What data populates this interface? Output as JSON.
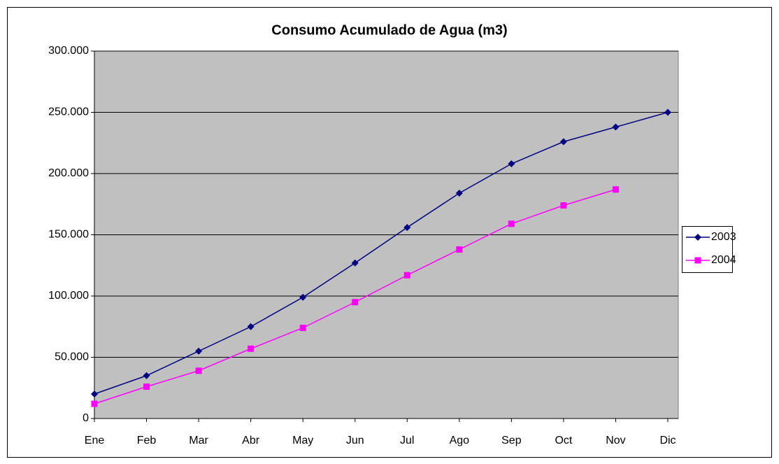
{
  "chart_data": {
    "type": "line",
    "title": "Consumo Acumulado de Agua (m3)",
    "categories": [
      "Ene",
      "Feb",
      "Mar",
      "Abr",
      "May",
      "Jun",
      "Jul",
      "Ago",
      "Sep",
      "Oct",
      "Nov",
      "Dic"
    ],
    "series": [
      {
        "name": "2003",
        "color": "#000080",
        "marker": "diamond",
        "values": [
          20000,
          35000,
          55000,
          75000,
          99000,
          127000,
          156000,
          184000,
          208000,
          226000,
          238000,
          250000
        ]
      },
      {
        "name": "2004",
        "color": "#FF00FF",
        "marker": "square",
        "values": [
          12000,
          26000,
          39000,
          57000,
          74000,
          95000,
          117000,
          138000,
          159000,
          174000,
          187000,
          null
        ]
      }
    ],
    "ylim": [
      0,
      300000
    ],
    "yticks": [
      0,
      {
        "value": 50000,
        "label": "50.000"
      },
      {
        "value": 100000,
        "label": "100.000"
      },
      {
        "value": 150000,
        "label": "150.000"
      },
      {
        "value": 200000,
        "label": "200.000"
      },
      {
        "value": 250000,
        "label": "250.000"
      },
      {
        "value": 300000,
        "label": "300.000"
      }
    ],
    "grid": true,
    "legend": "right",
    "plot_background": "#C0C0C0"
  }
}
